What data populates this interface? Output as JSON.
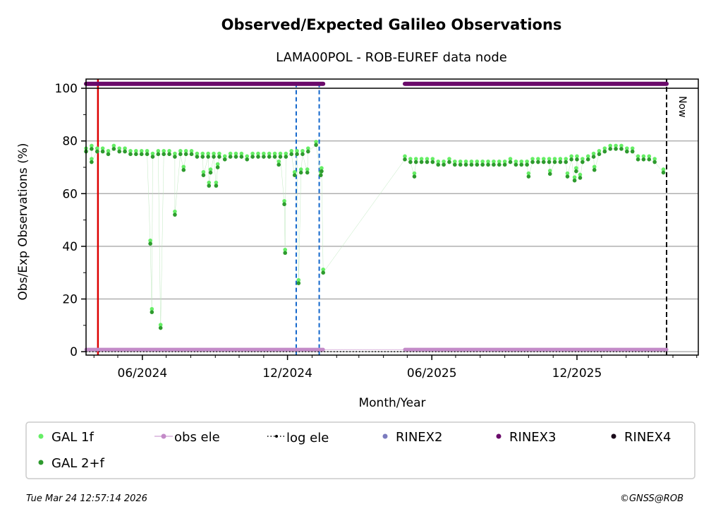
{
  "chart_data": {
    "type": "scatter",
    "title": "Observed/Expected Galileo Observations",
    "subtitle": "LAMA00POL - ROB-EUREF data node",
    "xlabel": "Month/Year",
    "ylabel": "Obs/Exp Observations (%)",
    "xlim": [
      "2024-03-22",
      "2026-05-03"
    ],
    "ylim": [
      -1.3,
      103.5
    ],
    "grid": "horizontal",
    "y_ticks": [
      "0",
      "20",
      "40",
      "60",
      "80",
      "100"
    ],
    "x_ticks": [
      {
        "date": "2024-06-01",
        "label": "06/2024"
      },
      {
        "date": "2024-12-01",
        "label": "12/2024"
      },
      {
        "date": "2025-06-01",
        "label": "06/2025"
      },
      {
        "date": "2025-12-01",
        "label": "12/2025"
      }
    ],
    "now_label": "Now",
    "now_date": "2026-03-24",
    "events": [
      {
        "type": "red-solid",
        "date": "2024-04-06"
      },
      {
        "type": "blue-dashed",
        "date": "2024-12-12"
      },
      {
        "type": "blue-dashed",
        "date": "2025-01-10"
      }
    ],
    "series": {
      "gal2f": {
        "name": "GAL 2+f",
        "color": "#2e9a2e",
        "segments": [
          {
            "start": "2024-03-22",
            "step_days": 7,
            "values": [
              76,
              77,
              76,
              76,
              75,
              77,
              76,
              76,
              75,
              75,
              75,
              75,
              74,
              75,
              75,
              75,
              74,
              75,
              75,
              75,
              74,
              74,
              74,
              74,
              74,
              73,
              74,
              74,
              74,
              73,
              74,
              74,
              74,
              74,
              74,
              74,
              74,
              75,
              75,
              75,
              76
            ]
          },
          {
            "start": "2025-04-28",
            "step_days": 7,
            "values": [
              73,
              72,
              72,
              72,
              72,
              72,
              71,
              71,
              72,
              71,
              71,
              71,
              71,
              71,
              71,
              71,
              71,
              71,
              71,
              72,
              71,
              71,
              71,
              72,
              72,
              72,
              72,
              72,
              72,
              72,
              73,
              73,
              72,
              73,
              74,
              75,
              76,
              77,
              77,
              77,
              76,
              76,
              73,
              73,
              73,
              72
            ]
          }
        ],
        "outliers": [
          [
            "2024-03-29",
            72
          ],
          [
            "2024-06-11",
            41
          ],
          [
            "2024-06-13",
            15
          ],
          [
            "2024-06-24",
            9
          ],
          [
            "2024-07-12",
            52
          ],
          [
            "2024-07-23",
            69
          ],
          [
            "2024-08-17",
            67
          ],
          [
            "2024-08-24",
            63
          ],
          [
            "2024-08-26",
            68
          ],
          [
            "2024-09-02",
            63
          ],
          [
            "2024-09-04",
            70
          ],
          [
            "2024-11-20",
            71
          ],
          [
            "2024-11-27",
            56
          ],
          [
            "2024-11-28",
            37.5
          ],
          [
            "2024-12-10",
            67
          ],
          [
            "2024-12-15",
            26
          ],
          [
            "2024-12-18",
            68
          ],
          [
            "2024-12-26",
            68
          ],
          [
            "2025-01-06",
            78.5
          ],
          [
            "2025-01-12",
            67
          ],
          [
            "2025-01-13",
            68.5
          ],
          [
            "2025-01-15",
            30
          ],
          [
            "2025-05-10",
            66.5
          ],
          [
            "2025-10-01",
            66.5
          ],
          [
            "2025-10-28",
            67.5
          ],
          [
            "2025-11-19",
            66.5
          ],
          [
            "2025-11-28",
            65
          ],
          [
            "2025-11-30",
            68.5
          ],
          [
            "2025-12-05",
            66
          ],
          [
            "2025-12-23",
            69
          ],
          [
            "2026-03-20",
            68
          ]
        ]
      },
      "gal1f": {
        "name": "GAL 1f",
        "color": "#66ee66",
        "offset_from_gal2f": 1.2
      },
      "obs_ele": {
        "name": "obs ele",
        "color": "#c38ac8",
        "segments": [
          {
            "start": "2024-03-22",
            "end": "2025-01-15",
            "value": 0.8
          },
          {
            "start": "2025-04-28",
            "end": "2026-03-24",
            "value": 0.8
          }
        ]
      },
      "log_ele": {
        "name": "log ele",
        "color": "#000000",
        "value": 0
      },
      "rinex2": {
        "name": "RINEX2",
        "color": "#7b7bbf"
      },
      "rinex3": {
        "name": "RINEX3",
        "color": "#6a0a6a",
        "level": 101.7,
        "segments": [
          [
            "2024-03-22",
            "2025-01-15"
          ],
          [
            "2025-04-28",
            "2026-03-24"
          ]
        ]
      },
      "rinex4": {
        "name": "RINEX4",
        "color": "#1a0a1a"
      }
    },
    "legend": {
      "placement": "bottom",
      "entries": [
        "GAL 1f",
        "obs ele",
        "log ele",
        "RINEX2",
        "RINEX3",
        "RINEX4",
        "GAL 2+f"
      ]
    }
  },
  "footer": {
    "timestamp": "Tue Mar 24 12:57:14 2026",
    "credit": "©GNSS@ROB"
  }
}
